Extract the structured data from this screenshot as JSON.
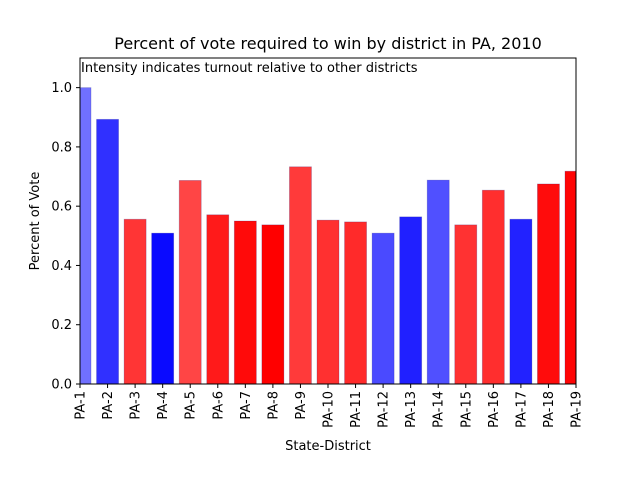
{
  "chart_data": {
    "type": "bar",
    "title": "Percent of vote required to win by district in PA, 2010",
    "annotation": "Intensity indicates turnout relative to other districts",
    "xlabel": "State-District",
    "ylabel": "Percent of Vote",
    "ylim": [
      0,
      1.1
    ],
    "yticks": [
      "0.0",
      "0.2",
      "0.4",
      "0.6",
      "0.8",
      "1.0"
    ],
    "grid": false,
    "categories": [
      "PA-1",
      "PA-2",
      "PA-3",
      "PA-4",
      "PA-5",
      "PA-6",
      "PA-7",
      "PA-8",
      "PA-9",
      "PA-10",
      "PA-11",
      "PA-12",
      "PA-13",
      "PA-14",
      "PA-15",
      "PA-16",
      "PA-17",
      "PA-18",
      "PA-19"
    ],
    "values": [
      1.0,
      0.893,
      0.556,
      0.509,
      0.687,
      0.571,
      0.55,
      0.537,
      0.733,
      0.553,
      0.547,
      0.509,
      0.564,
      0.688,
      0.537,
      0.654,
      0.556,
      0.675,
      0.718
    ],
    "colors": [
      "#7070ff",
      "#3030ff",
      "#ff3535",
      "#0a0aff",
      "#ff4545",
      "#ff1a1a",
      "#ff0a0a",
      "#ff0000",
      "#ff3a3a",
      "#ff3030",
      "#ff2a2a",
      "#4a4aff",
      "#2020ff",
      "#5050ff",
      "#ff3232",
      "#ff2e2e",
      "#2222ff",
      "#ff0c0c",
      "#ff0505"
    ]
  }
}
